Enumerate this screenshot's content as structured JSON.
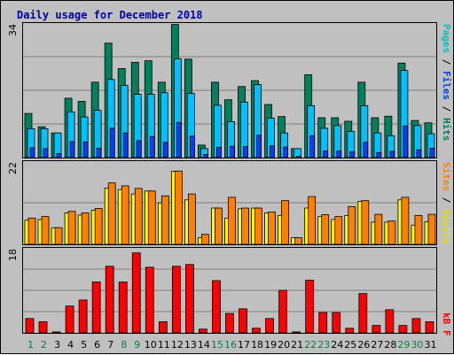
{
  "title": "Daily usage for December 2018",
  "colors": {
    "background": "#c0c0c0",
    "plot_background": "#c0c0c0",
    "title": "#0000a0",
    "hits": "#00805c",
    "files": "#00c0ff",
    "pages": "#0040ff",
    "visits": "#ffff00",
    "sites": "#ff8000",
    "kbytes": "#ff0000",
    "weekday_label": "#000000",
    "weekend_label": "#008040"
  },
  "legends": {
    "panel1": [
      {
        "text": "Pages",
        "color": "#00c0c0"
      },
      {
        "text": " / ",
        "color": "#000000"
      },
      {
        "text": "Files",
        "color": "#0040ff"
      },
      {
        "text": " / ",
        "color": "#000000"
      },
      {
        "text": "Hits",
        "color": "#00805c"
      }
    ],
    "panel2": [
      {
        "text": "Sites",
        "color": "#ff8000"
      },
      {
        "text": " / ",
        "color": "#000000"
      },
      {
        "text": "Visits",
        "color": "#e0e000"
      }
    ],
    "panel3": [
      {
        "text": "kB F",
        "color": "#ff0000"
      }
    ]
  },
  "chart_data": [
    {
      "type": "bar",
      "ymax_label": "34",
      "ylim": [
        0,
        34
      ],
      "grid": true,
      "categories": [
        "1",
        "2",
        "3",
        "4",
        "5",
        "6",
        "7",
        "8",
        "9",
        "10",
        "11",
        "12",
        "13",
        "14",
        "15",
        "16",
        "17",
        "18",
        "19",
        "20",
        "21",
        "22",
        "23",
        "24",
        "25",
        "26",
        "27",
        "28",
        "29",
        "30",
        "31"
      ],
      "series": [
        {
          "name": "Hits",
          "values": [
            11.3,
            7.9,
            6.3,
            15.2,
            14.4,
            19.3,
            29.3,
            22.8,
            24.4,
            24.8,
            19.3,
            34.1,
            25.2,
            3.2,
            19.3,
            14.8,
            18.2,
            19.7,
            13.6,
            10.5,
            2.3,
            21.2,
            10.2,
            10.2,
            9.3,
            19.3,
            10.2,
            10.6,
            24.2,
            9.5,
            8.9
          ]
        },
        {
          "name": "Files",
          "values": [
            7.4,
            7.4,
            6.3,
            11.7,
            10.4,
            12.1,
            20.0,
            18.5,
            16.2,
            16.2,
            16.6,
            25.3,
            16.4,
            2.3,
            13.4,
            9.2,
            14.2,
            18.7,
            10.1,
            6.3,
            2.3,
            13.3,
            7.5,
            8.2,
            6.7,
            13.3,
            6.3,
            5.6,
            22.3,
            8.2,
            6.1
          ]
        },
        {
          "name": "Pages",
          "values": [
            2.5,
            2.3,
            1.0,
            4.1,
            4.0,
            2.4,
            7.5,
            6.3,
            4.3,
            5.4,
            3.9,
            9.0,
            5.5,
            0.8,
            2.6,
            2.9,
            2.8,
            5.7,
            3.0,
            2.7,
            0.3,
            5.6,
            1.7,
            1.7,
            1.5,
            3.9,
            1.3,
            1.6,
            8.1,
            2.0,
            2.4
          ]
        }
      ]
    },
    {
      "type": "bar",
      "ymax_label": "22",
      "ylim": [
        0,
        22
      ],
      "grid": true,
      "categories": [
        "1",
        "2",
        "3",
        "4",
        "5",
        "6",
        "7",
        "8",
        "9",
        "10",
        "11",
        "12",
        "13",
        "14",
        "15",
        "16",
        "17",
        "18",
        "19",
        "20",
        "21",
        "22",
        "23",
        "24",
        "25",
        "26",
        "27",
        "28",
        "29",
        "30",
        "31"
      ],
      "series": [
        {
          "name": "Visits",
          "values": [
            6.5,
            6.7,
            4.5,
            8.5,
            7.9,
            9.2,
            15.2,
            14.8,
            13.6,
            14.4,
            11.2,
            19.7,
            12.0,
            1.8,
            9.8,
            7.1,
            9.6,
            9.8,
            8.5,
            7.8,
            1.8,
            9.8,
            7.5,
            6.7,
            7.8,
            11.6,
            6.0,
            6.0,
            12.0,
            5.2,
            6.1
          ]
        },
        {
          "name": "Sites",
          "values": [
            7.1,
            7.5,
            4.5,
            8.9,
            8.5,
            9.7,
            16.6,
            15.8,
            15.1,
            14.4,
            13.1,
            19.8,
            13.6,
            2.7,
            9.8,
            12.7,
            9.8,
            9.8,
            8.7,
            11.8,
            1.8,
            12.9,
            8.0,
            7.5,
            10.2,
            11.8,
            8.1,
            6.3,
            12.7,
            7.8,
            8.1
          ]
        }
      ]
    },
    {
      "type": "bar",
      "ymax_label": "18",
      "ylim": [
        0,
        18
      ],
      "grid": true,
      "categories": [
        "1",
        "2",
        "3",
        "4",
        "5",
        "6",
        "7",
        "8",
        "9",
        "10",
        "11",
        "12",
        "13",
        "14",
        "15",
        "16",
        "17",
        "18",
        "19",
        "20",
        "21",
        "22",
        "23",
        "24",
        "25",
        "26",
        "27",
        "28",
        "29",
        "30",
        "31"
      ],
      "series": [
        {
          "name": "KBytes",
          "values": [
            3.1,
            2.4,
            0.2,
            5.8,
            7.1,
            11.0,
            14.4,
            11.0,
            17.3,
            14.2,
            2.4,
            14.4,
            14.8,
            0.8,
            11.3,
            4.2,
            5.2,
            1.0,
            3.1,
            9.2,
            0.2,
            11.4,
            4.4,
            4.4,
            1.0,
            8.5,
            1.6,
            5.0,
            1.6,
            3.1,
            2.4
          ]
        }
      ]
    }
  ]
}
